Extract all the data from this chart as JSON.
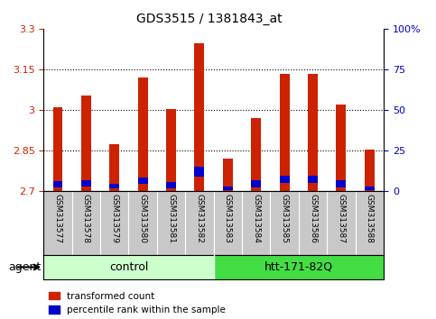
{
  "title": "GDS3515 / 1381843_at",
  "samples": [
    "GSM313577",
    "GSM313578",
    "GSM313579",
    "GSM313580",
    "GSM313581",
    "GSM313582",
    "GSM313583",
    "GSM313584",
    "GSM313585",
    "GSM313586",
    "GSM313587",
    "GSM313588"
  ],
  "red_values": [
    3.01,
    3.055,
    2.875,
    3.12,
    3.005,
    3.245,
    2.82,
    2.97,
    3.135,
    3.135,
    3.02,
    2.855
  ],
  "blue_top": [
    2.738,
    2.74,
    2.728,
    2.752,
    2.735,
    2.792,
    2.718,
    2.74,
    2.758,
    2.758,
    2.74,
    2.718
  ],
  "blue_bottom": [
    2.715,
    2.717,
    2.71,
    2.728,
    2.712,
    2.755,
    2.705,
    2.716,
    2.73,
    2.73,
    2.716,
    2.705
  ],
  "ymin": 2.7,
  "ymax": 3.3,
  "yticks": [
    2.7,
    2.85,
    3.0,
    3.15,
    3.3
  ],
  "ytick_labels": [
    "2.7",
    "2.85",
    "3",
    "3.15",
    "3.3"
  ],
  "right_yticks_pct": [
    0,
    25,
    50,
    75,
    100
  ],
  "right_yticklabels": [
    "0",
    "25",
    "50",
    "75",
    "100%"
  ],
  "bar_color_red": "#cc2200",
  "bar_color_blue": "#0000cc",
  "bar_width": 0.35,
  "background_color": "#ffffff",
  "plot_bg_color": "#ffffff",
  "tick_label_color_left": "#cc2200",
  "tick_label_color_right": "#0000cc",
  "agent_label": "agent",
  "control_label": "control",
  "htt_label": "htt-171-82Q",
  "control_color": "#ccffcc",
  "htt_color": "#44dd44",
  "label_bg_color": "#c8c8c8",
  "legend_red": "transformed count",
  "legend_blue": "percentile rank within the sample"
}
